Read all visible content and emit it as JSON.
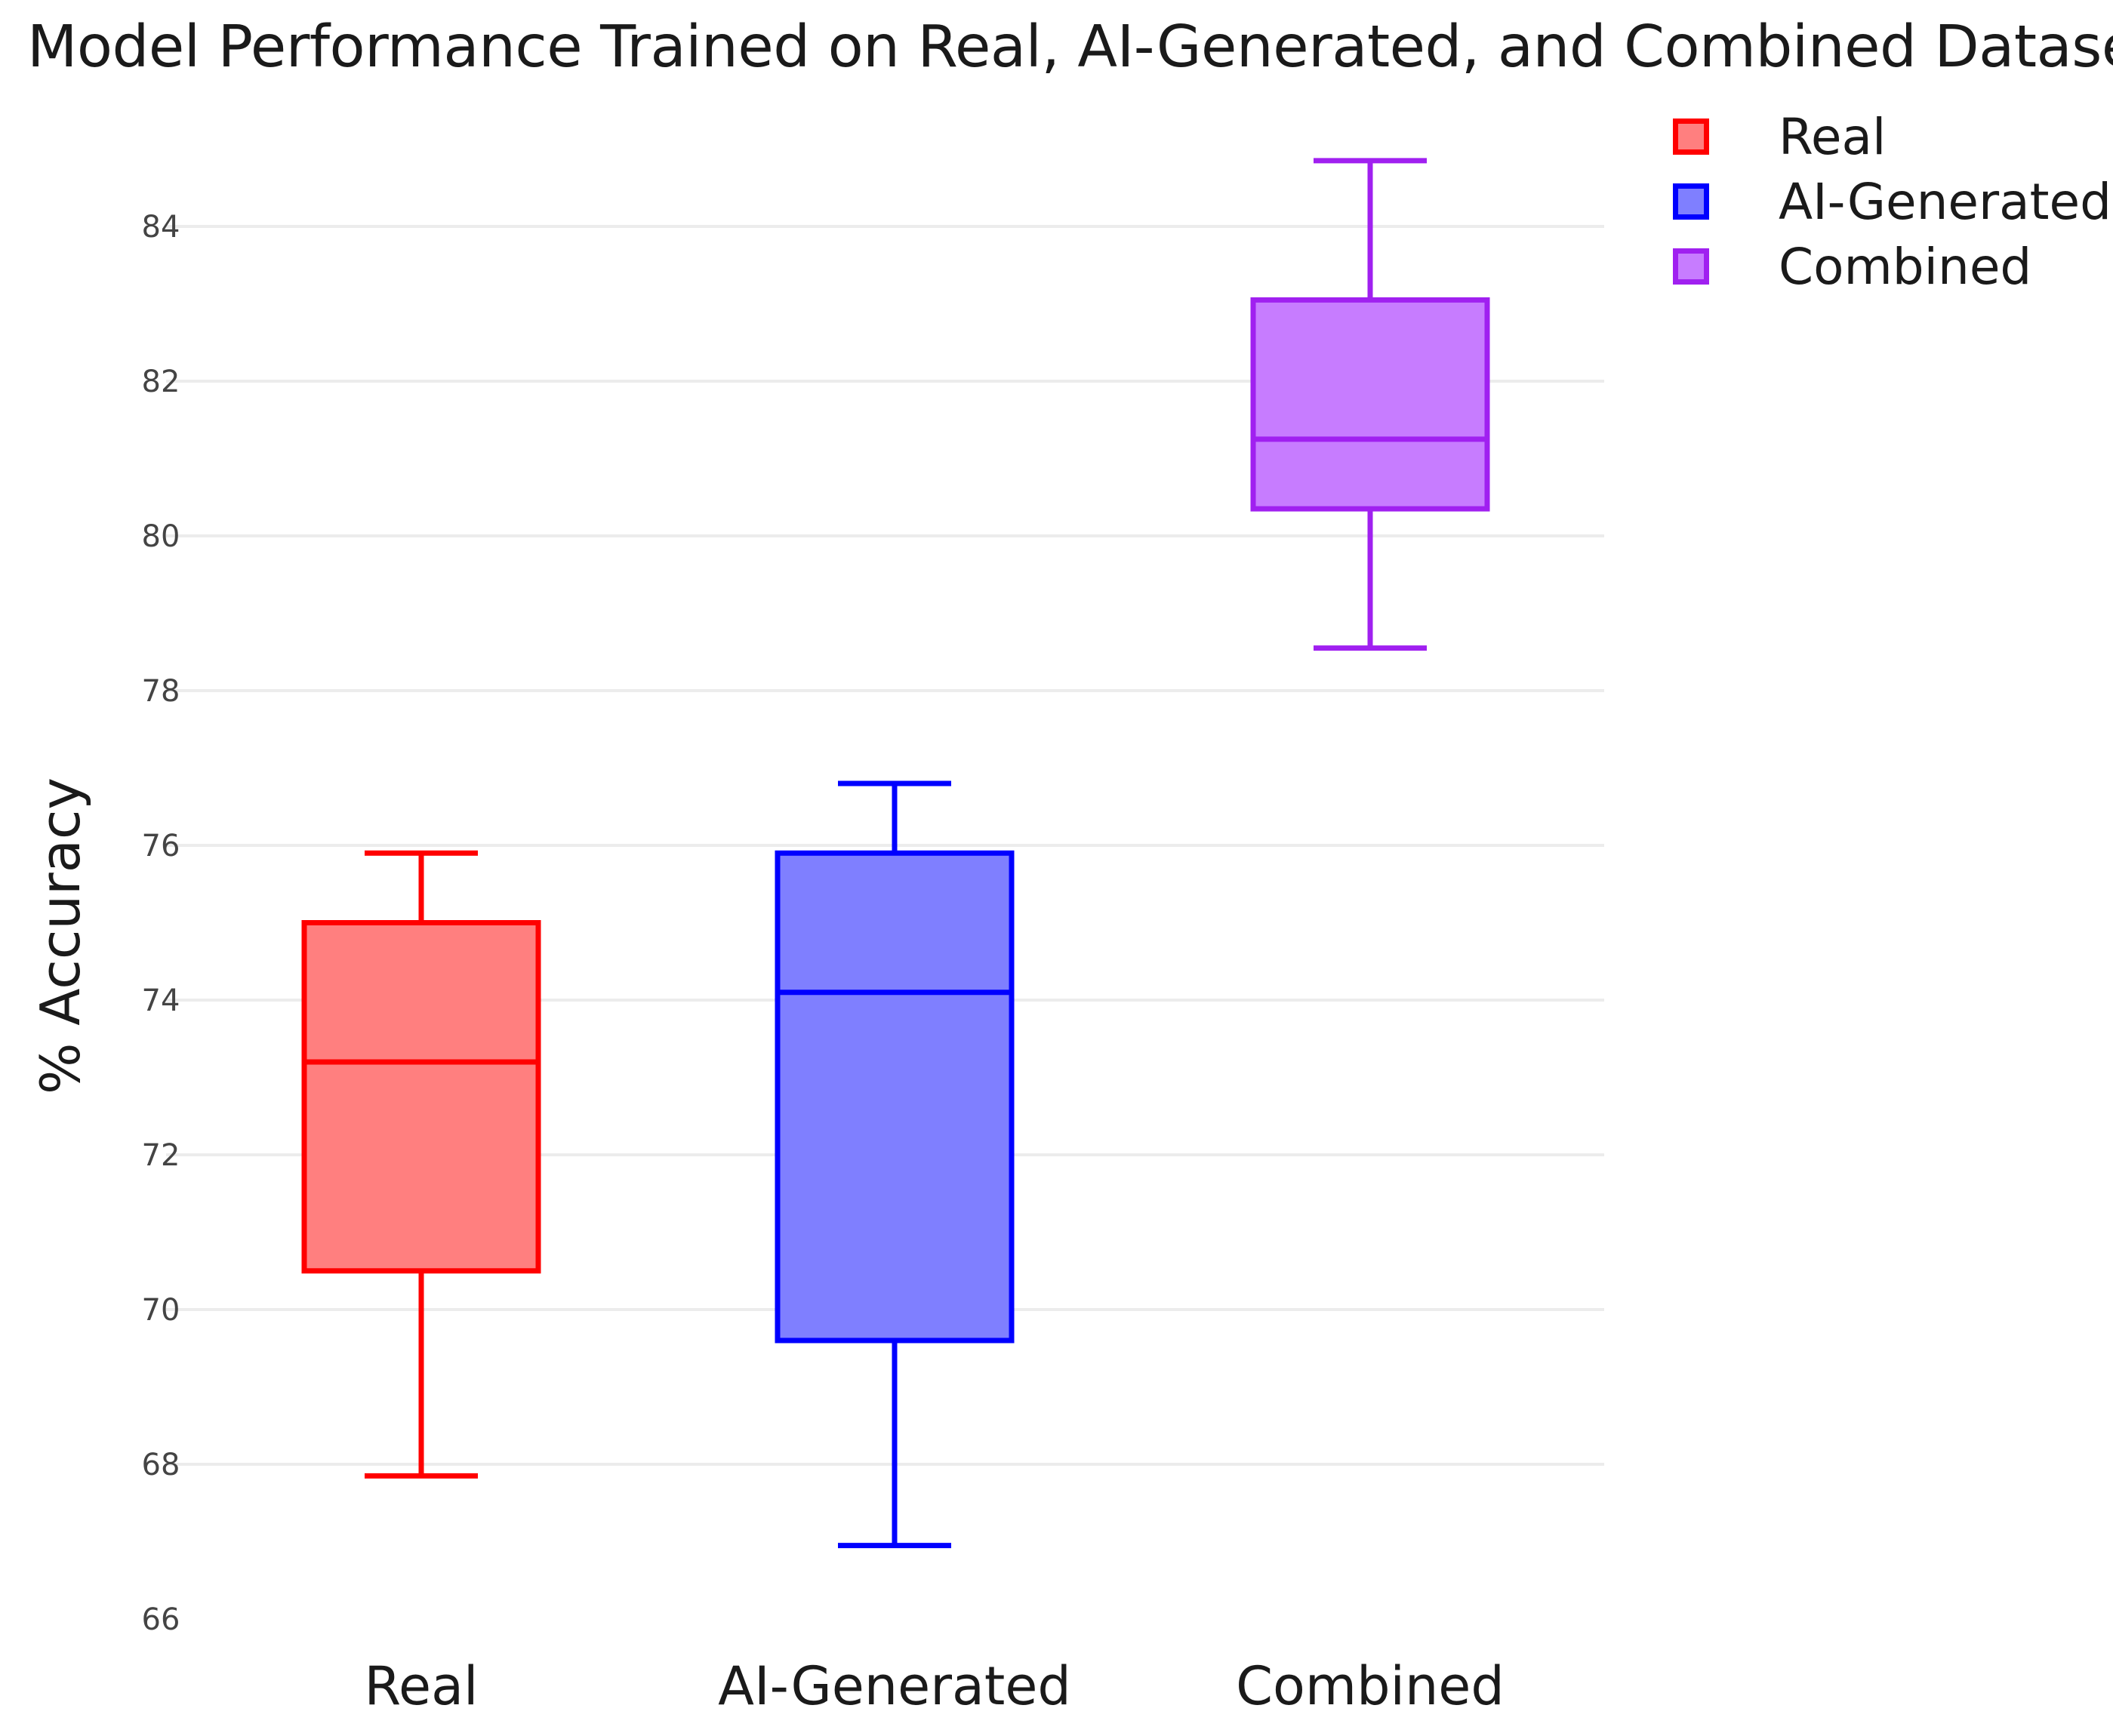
{
  "chart_data": {
    "type": "box",
    "title": "Model Performance Trained on Real, AI-Generated, and Combined Datasets",
    "xlabel": "",
    "ylabel": "% Accuracy",
    "ylim": [
      66,
      85.2
    ],
    "yticks": [
      66,
      68,
      70,
      72,
      74,
      76,
      78,
      80,
      82,
      84
    ],
    "grid": true,
    "legend_position": "top-right",
    "categories": [
      "Real",
      "AI-Generated",
      "Combined"
    ],
    "series": [
      {
        "name": "Real",
        "min": 67.85,
        "q1": 70.5,
        "median": 73.2,
        "q3": 75.0,
        "max": 75.9,
        "stroke": "#ff0000",
        "fill": "#ff7f7f"
      },
      {
        "name": "AI-Generated",
        "min": 66.95,
        "q1": 69.6,
        "median": 74.1,
        "q3": 75.9,
        "max": 76.8,
        "stroke": "#0000ff",
        "fill": "#7f7fff"
      },
      {
        "name": "Combined",
        "min": 78.55,
        "q1": 80.35,
        "median": 81.25,
        "q3": 83.05,
        "max": 84.85,
        "stroke": "#a020f0",
        "fill": "#c77cff"
      }
    ]
  }
}
